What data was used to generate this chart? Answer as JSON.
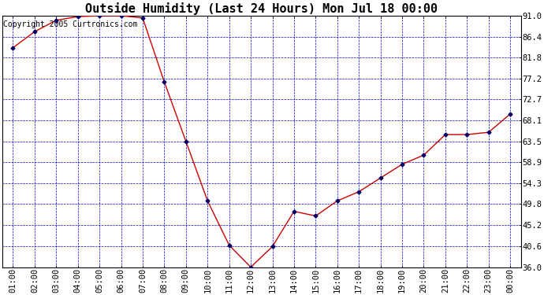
{
  "title": "Outside Humidity (Last 24 Hours) Mon Jul 18 00:00",
  "copyright": "Copyright 2005 Curtronics.com",
  "x_labels": [
    "01:00",
    "02:00",
    "03:00",
    "04:00",
    "05:00",
    "06:00",
    "07:00",
    "08:00",
    "09:00",
    "10:00",
    "11:00",
    "12:00",
    "13:00",
    "14:00",
    "15:00",
    "16:00",
    "17:00",
    "18:00",
    "19:00",
    "20:00",
    "21:00",
    "22:00",
    "23:00",
    "00:00"
  ],
  "x_values": [
    1,
    2,
    3,
    4,
    5,
    6,
    7,
    8,
    9,
    10,
    11,
    12,
    13,
    14,
    15,
    16,
    17,
    18,
    19,
    20,
    21,
    22,
    23,
    24
  ],
  "y_values": [
    84.0,
    87.5,
    90.0,
    90.8,
    91.0,
    91.0,
    90.5,
    76.5,
    63.5,
    50.5,
    40.8,
    36.0,
    40.5,
    48.2,
    47.2,
    50.5,
    52.5,
    55.5,
    58.5,
    60.5,
    65.0,
    65.0,
    65.5,
    69.5
  ],
  "y_ticks": [
    36.0,
    40.6,
    45.2,
    49.8,
    54.3,
    58.9,
    63.5,
    68.1,
    72.7,
    77.2,
    81.8,
    86.4,
    91.0
  ],
  "line_color": "#cc0000",
  "marker_color": "#000066",
  "bg_color": "#ffffff",
  "plot_bg_color": "#ffffff",
  "grid_color": "#0000cc",
  "title_fontsize": 11,
  "copyright_fontsize": 7,
  "tick_fontsize": 7.5
}
